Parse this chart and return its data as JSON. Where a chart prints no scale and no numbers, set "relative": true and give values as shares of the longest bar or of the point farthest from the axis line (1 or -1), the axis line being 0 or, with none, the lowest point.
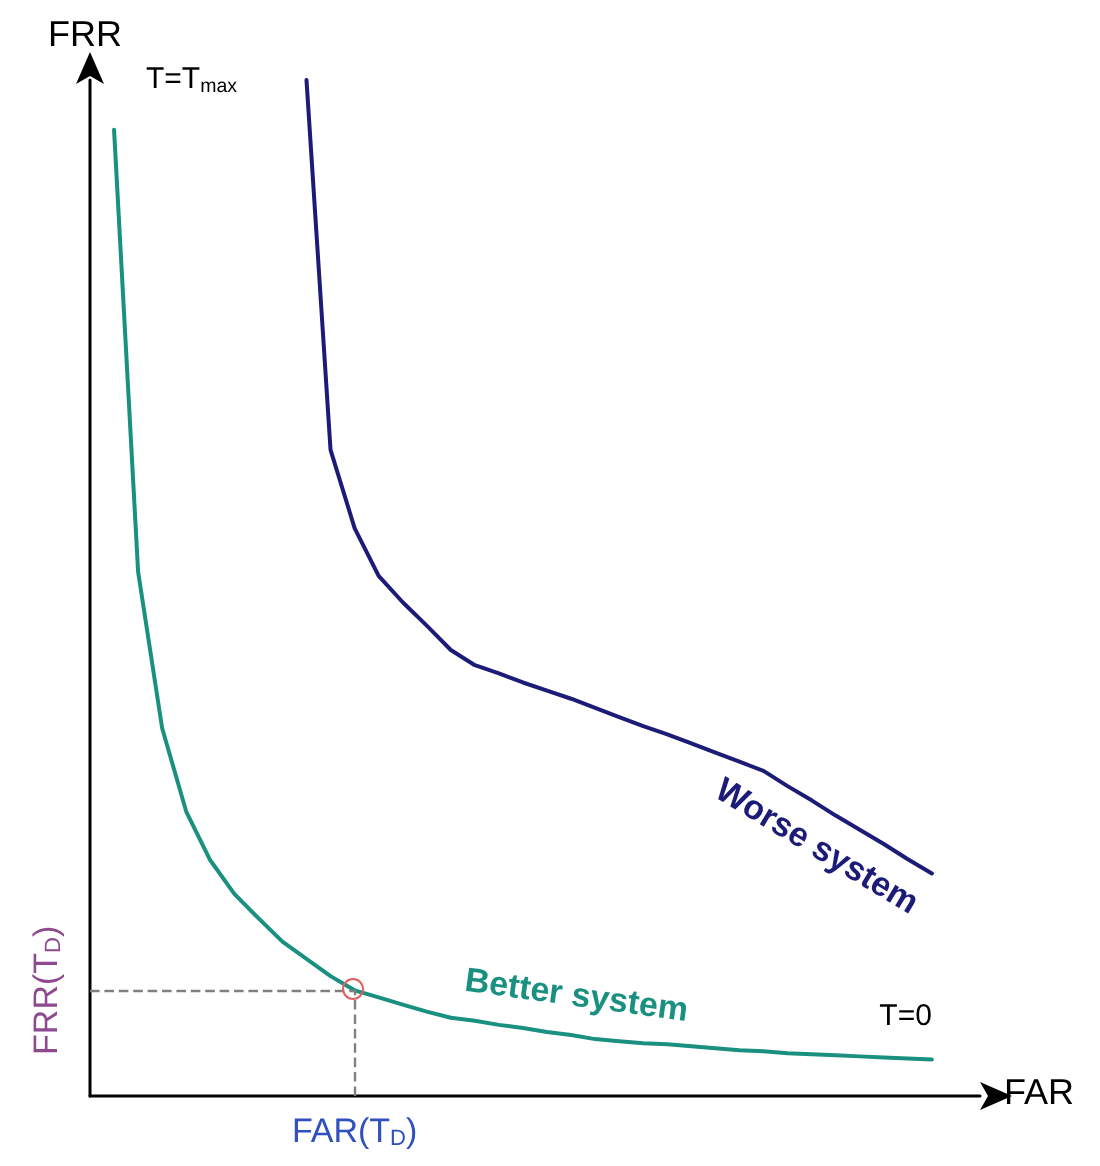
{
  "chart_data": {
    "type": "line",
    "relative": true,
    "xlabel": "FAR",
    "ylabel": "FRR",
    "marker": "none",
    "categories": [
      null,
      null,
      null,
      null,
      null,
      null,
      null,
      null,
      null,
      null,
      null,
      null,
      null,
      null,
      null,
      null,
      null,
      null,
      null,
      null,
      null,
      null,
      null,
      null,
      null,
      null,
      null,
      null,
      null,
      null,
      null,
      null,
      null,
      null,
      null,
      null,
      null,
      null
    ],
    "series": [
      {
        "name": "Worse system",
        "color": "#1c1c78",
        "values": [
          null,
          null,
          null,
          null,
          null,
          null,
          null,
          null,
          null,
          1.0,
          0.636,
          0.559,
          0.512,
          0.486,
          0.463,
          0.439,
          0.424,
          0.416,
          0.407,
          0.399,
          0.391,
          0.382,
          0.373,
          0.364,
          0.356,
          0.347,
          0.338,
          0.329,
          0.32,
          0.305,
          0.291,
          0.276,
          0.262,
          0.248,
          0.233,
          0.219,
          null,
          null
        ]
      },
      {
        "name": "Better system",
        "color": "#1a9080",
        "values": [
          null,
          0.951,
          0.516,
          0.362,
          0.28,
          0.232,
          0.199,
          0.175,
          0.152,
          0.135,
          0.118,
          0.104,
          0.097,
          0.09,
          0.083,
          0.077,
          0.074,
          0.07,
          0.067,
          0.063,
          0.06,
          0.056,
          0.054,
          0.052,
          0.051,
          0.049,
          0.047,
          0.045,
          0.044,
          0.042,
          0.041,
          0.04,
          0.039,
          0.038,
          0.037,
          0.036,
          null,
          null
        ]
      }
    ],
    "ref_lines": [
      {
        "axis": "y",
        "value": 0.104,
        "label": "FRR(T$_{D}$)",
        "color": "#808080",
        "line_style": "dashed"
      }
    ],
    "annotations": [
      "FAR(T$_{D}$)",
      "T=T$_{max}$",
      {
        "text": "T=0",
        "y": 0.036
      }
    ]
  }
}
